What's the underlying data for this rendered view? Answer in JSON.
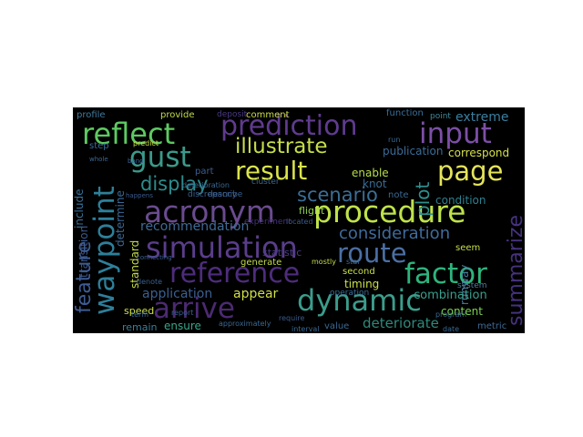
{
  "words": [
    {
      "text": "prediction",
      "color": "#5f3b8e"
    },
    {
      "text": "reflect",
      "color": "#5ec962"
    },
    {
      "text": "input",
      "color": "#7c4fa6"
    },
    {
      "text": "gust",
      "color": "#3a9a8a"
    },
    {
      "text": "illustrate",
      "color": "#c7dd4a"
    },
    {
      "text": "result",
      "color": "#dbe44b"
    },
    {
      "text": "page",
      "color": "#e5e45a"
    },
    {
      "text": "display",
      "color": "#2d8c8d"
    },
    {
      "text": "acronym",
      "color": "#6a4b8f"
    },
    {
      "text": "scenario",
      "color": "#3a6f96"
    },
    {
      "text": "procedure",
      "color": "#bfe24a"
    },
    {
      "text": "simulation",
      "color": "#5a3d8a"
    },
    {
      "text": "route",
      "color": "#4b6fa3"
    },
    {
      "text": "consideration",
      "color": "#3f6b9a"
    },
    {
      "text": "reference",
      "color": "#4d2c7c"
    },
    {
      "text": "factor",
      "color": "#2fb47c"
    },
    {
      "text": "dynamic",
      "color": "#3b9d8c"
    },
    {
      "text": "arrive",
      "color": "#4b2a72"
    },
    {
      "text": "deteriorate",
      "color": "#2f8a7c"
    },
    {
      "text": "waypoint",
      "color": "#2e7f9a"
    },
    {
      "text": "feature",
      "color": "#3e5b93"
    },
    {
      "text": "summarize",
      "color": "#46327e"
    },
    {
      "text": "recommendation",
      "color": "#3f6a95"
    },
    {
      "text": "application",
      "color": "#3b5f90"
    },
    {
      "text": "appear",
      "color": "#d1df44"
    },
    {
      "text": "combination",
      "color": "#3a9f8e"
    },
    {
      "text": "timing",
      "color": "#cbe04a"
    },
    {
      "text": "content",
      "color": "#7ad151"
    },
    {
      "text": "ensure",
      "color": "#38a58a"
    },
    {
      "text": "remain",
      "color": "#3a7f9a"
    },
    {
      "text": "extreme",
      "color": "#3a7fa0"
    },
    {
      "text": "correspond",
      "color": "#d6e04a"
    },
    {
      "text": "publication",
      "color": "#3b6c98"
    },
    {
      "text": "condition",
      "color": "#2d8090"
    },
    {
      "text": "enable",
      "color": "#b7dd4a"
    },
    {
      "text": "include",
      "color": "#36709a"
    },
    {
      "text": "plot",
      "color": "#2e8f8c"
    },
    {
      "text": "comment",
      "color": "#cdde46"
    },
    {
      "text": "provide",
      "color": "#c0dc4a"
    },
    {
      "text": "profile",
      "color": "#3f7da0"
    },
    {
      "text": "function",
      "color": "#3a6e98"
    },
    {
      "text": "point",
      "color": "#3e8a99"
    },
    {
      "text": "step",
      "color": "#3b6b96"
    },
    {
      "text": "transition",
      "color": "#3d5a8e"
    },
    {
      "text": "determine",
      "color": "#3c6896"
    },
    {
      "text": "standard",
      "color": "#c6dc48"
    },
    {
      "text": "speed",
      "color": "#cde04a"
    },
    {
      "text": "generate",
      "color": "#c2dd48"
    },
    {
      "text": "flight",
      "color": "#8fd44e"
    },
    {
      "text": "experiment",
      "color": "#46327e"
    },
    {
      "text": "statistic",
      "color": "#4b3b86"
    },
    {
      "text": "second",
      "color": "#c9df4a"
    },
    {
      "text": "runway",
      "color": "#4a7fa0"
    },
    {
      "text": "seem",
      "color": "#c7de4a"
    },
    {
      "text": "system",
      "color": "#4a7d9c"
    },
    {
      "text": "metric",
      "color": "#3f6b96"
    },
    {
      "text": "value",
      "color": "#3a6a94"
    },
    {
      "text": "operation",
      "color": "#3a6c96"
    },
    {
      "text": "describe",
      "color": "#3a5f90"
    },
    {
      "text": "report",
      "color": "#3a5f90"
    },
    {
      "text": "interval",
      "color": "#3a6892"
    },
    {
      "text": "mostly",
      "color": "#c5dd48"
    },
    {
      "text": "require",
      "color": "#3a5a8c"
    },
    {
      "text": "term",
      "color": "#3a6a94"
    },
    {
      "text": "approximately",
      "color": "#3a6892"
    },
    {
      "text": "part",
      "color": "#3a5f90"
    },
    {
      "text": "cluster",
      "color": "#3a6892"
    },
    {
      "text": "discrepancy",
      "color": "#3a6090"
    },
    {
      "text": "deterioration",
      "color": "#3a6892"
    },
    {
      "text": "knot",
      "color": "#3a6a94"
    },
    {
      "text": "date",
      "color": "#3a6a94"
    },
    {
      "text": "program",
      "color": "#3a6a94"
    },
    {
      "text": "note",
      "color": "#3a6892"
    },
    {
      "text": "deposit",
      "color": "#4a3a84"
    },
    {
      "text": "located",
      "color": "#3a5a8c"
    },
    {
      "text": "run",
      "color": "#3a6892"
    },
    {
      "text": "star",
      "color": "#3a6a94"
    },
    {
      "text": "denote",
      "color": "#3a6090"
    },
    {
      "text": "predict",
      "color": "#c9dd48"
    },
    {
      "text": "happens",
      "color": "#3a5a8c"
    },
    {
      "text": "band",
      "color": "#3a6a94"
    },
    {
      "text": "whole",
      "color": "#3a6892"
    },
    {
      "text": "connecting",
      "color": "#3a5f90"
    }
  ]
}
